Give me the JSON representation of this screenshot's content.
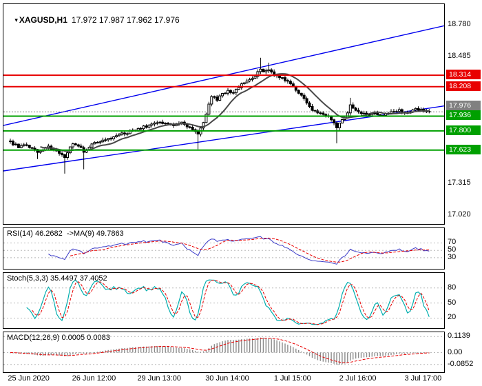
{
  "chart": {
    "symbol_period": "XAGUSD,H1",
    "ohlc": "17.972 17.987 17.962 17.976",
    "dropdown_icon": "chart-dropdown-icon"
  },
  "chart_data": {
    "type": "candlestick",
    "symbol": "XAGUSD",
    "timeframe": "H1",
    "title": "XAGUSD,H1 17.972 17.987 17.962 17.976",
    "last_ohlc": {
      "open": 17.972,
      "high": 17.987,
      "low": 17.962,
      "close": 17.976
    },
    "main": {
      "ylim": [
        16.94,
        18.97
      ],
      "grid": false,
      "candle_count": 155,
      "price_ticks": [
        {
          "label": "18.780",
          "price": 18.78
        },
        {
          "label": "18.485",
          "price": 18.485
        },
        {
          "label": "17.315",
          "price": 17.315
        },
        {
          "label": "17.020",
          "price": 17.02
        }
      ],
      "levels": [
        {
          "label": "18.314",
          "price": 18.314,
          "type": "resistance",
          "color": "#e80000"
        },
        {
          "label": "18.208",
          "price": 18.208,
          "type": "resistance",
          "color": "#e80000"
        },
        {
          "label": "17.976",
          "price": 17.976,
          "type": "current",
          "color": "#808080"
        },
        {
          "label": "17.936",
          "price": 17.936,
          "type": "support",
          "color": "#00a000"
        },
        {
          "label": "17.800",
          "price": 17.8,
          "type": "support",
          "color": "#00a000"
        },
        {
          "label": "17.623",
          "price": 17.623,
          "type": "support",
          "color": "#00a000"
        }
      ],
      "channel_lines": [
        {
          "name": "upper-ascending-channel",
          "color": "#0000ee",
          "p_start": 17.85,
          "p_end": 18.77
        },
        {
          "name": "lower-ascending-channel",
          "color": "#0000ee",
          "p_start": 17.43,
          "p_end": 18.03
        }
      ],
      "moving_average": {
        "period": 12,
        "color": "#474747"
      },
      "close_anchors": [
        [
          0,
          17.695
        ],
        [
          3,
          17.655
        ],
        [
          6,
          17.665
        ],
        [
          10,
          17.605
        ],
        [
          14,
          17.65
        ],
        [
          18,
          17.6
        ],
        [
          20,
          17.565
        ],
        [
          23,
          17.69
        ],
        [
          26,
          17.64
        ],
        [
          27,
          17.6
        ],
        [
          29,
          17.655
        ],
        [
          33,
          17.71
        ],
        [
          37,
          17.735
        ],
        [
          41,
          17.77
        ],
        [
          45,
          17.8
        ],
        [
          49,
          17.835
        ],
        [
          53,
          17.865
        ],
        [
          57,
          17.875
        ],
        [
          60,
          17.845
        ],
        [
          63,
          17.875
        ],
        [
          66,
          17.83
        ],
        [
          69,
          17.78
        ],
        [
          71,
          17.87
        ],
        [
          72,
          17.95
        ],
        [
          73,
          18.05
        ],
        [
          74,
          18.12
        ],
        [
          76,
          18.09
        ],
        [
          78,
          18.14
        ],
        [
          80,
          18.17
        ],
        [
          82,
          18.15
        ],
        [
          84,
          18.21
        ],
        [
          86,
          18.25
        ],
        [
          88,
          18.28
        ],
        [
          90,
          18.31
        ],
        [
          92,
          18.38
        ],
        [
          93,
          18.35
        ],
        [
          95,
          18.37
        ],
        [
          97,
          18.32
        ],
        [
          99,
          18.3
        ],
        [
          101,
          18.27
        ],
        [
          103,
          18.24
        ],
        [
          105,
          18.18
        ],
        [
          107,
          18.12
        ],
        [
          109,
          18.06
        ],
        [
          111,
          18.0
        ],
        [
          113,
          17.97
        ],
        [
          115,
          17.95
        ],
        [
          117,
          17.93
        ],
        [
          119,
          17.87
        ],
        [
          120,
          17.83
        ],
        [
          122,
          17.9
        ],
        [
          124,
          17.96
        ],
        [
          125,
          18.03
        ],
        [
          127,
          18.0
        ],
        [
          129,
          17.97
        ],
        [
          131,
          17.95
        ],
        [
          134,
          17.96
        ],
        [
          137,
          17.94
        ],
        [
          140,
          17.97
        ],
        [
          143,
          17.99
        ],
        [
          146,
          17.97
        ],
        [
          149,
          18.0
        ],
        [
          152,
          17.985
        ],
        [
          154,
          17.976
        ]
      ],
      "wick_events": [
        {
          "i": 10,
          "low": 17.54
        },
        {
          "i": 20,
          "low": 17.405
        },
        {
          "i": 27,
          "low": 17.445
        },
        {
          "i": 69,
          "low": 17.63
        },
        {
          "i": 92,
          "high": 18.475
        },
        {
          "i": 95,
          "high": 18.43
        },
        {
          "i": 120,
          "low": 17.685
        },
        {
          "i": 125,
          "high": 18.105
        }
      ]
    },
    "time_axis": {
      "labels": [
        {
          "text": "25 Jun 2020",
          "i": 7
        },
        {
          "text": "26 Jun 12:00",
          "i": 31
        },
        {
          "text": "29 Jun 13:00",
          "i": 55
        },
        {
          "text": "30 Jun 14:00",
          "i": 80
        },
        {
          "text": "1 Jul 15:00",
          "i": 104
        },
        {
          "text": "2 Jul 16:00",
          "i": 128
        },
        {
          "text": "3 Jul 17:00",
          "i": 152
        }
      ]
    },
    "indicators": [
      {
        "id": "rsi",
        "header": "RSI(14) 46.2682  ->MA(9) 49.7863",
        "current_value": 46.2682,
        "current_ma": 49.7863,
        "period": 14,
        "ma_period": 9,
        "range": [
          0,
          110
        ],
        "ticks": [
          {
            "label": "70",
            "value": 70
          },
          {
            "label": "50",
            "value": 50
          },
          {
            "label": "30",
            "value": 30
          }
        ],
        "main_color": "#3a3ac8",
        "signal_color": "#e80000"
      },
      {
        "id": "stoch",
        "header": "Stoch(5,3,3) 35.4497 37.4052",
        "current_k": 35.4497,
        "current_d": 37.4052,
        "k_period": 5,
        "slowing": 3,
        "d_period": 3,
        "range": [
          0,
          110
        ],
        "ticks": [
          {
            "label": "80",
            "value": 80
          },
          {
            "label": "50",
            "value": 50
          },
          {
            "label": "20",
            "value": 20
          }
        ],
        "main_color": "#00aeae",
        "signal_color": "#e80000"
      },
      {
        "id": "macd",
        "header": "MACD(12,26,9) 0.0005 0.0083",
        "current_macd": 0.0005,
        "current_signal": 0.0083,
        "fast": 12,
        "slow": 26,
        "signal": 9,
        "range": [
          -0.14,
          0.145
        ],
        "ticks": [
          {
            "label": "0.1139",
            "value": 0.1139
          },
          {
            "label": "0.00",
            "value": 0.0
          },
          {
            "label": "-0.0852",
            "value": -0.0852
          }
        ],
        "histogram_color": "#8c8c8c",
        "signal_color": "#e80000"
      }
    ]
  }
}
